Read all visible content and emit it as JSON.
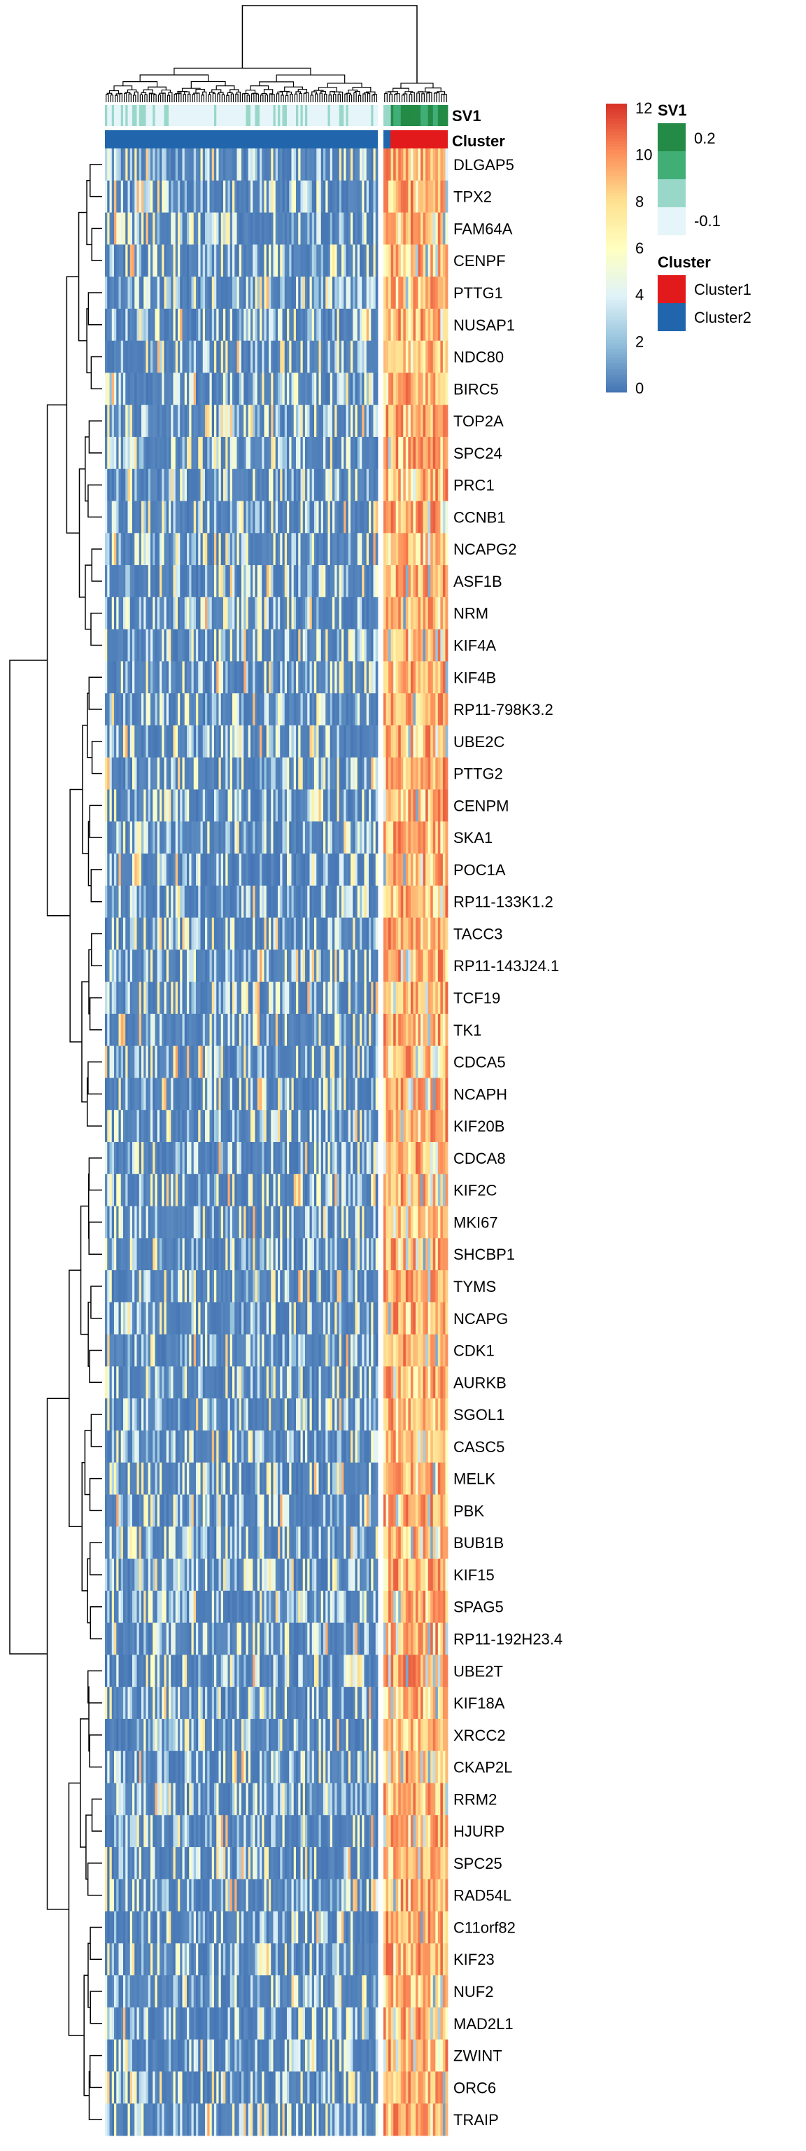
{
  "chart_data": {
    "type": "heatmap",
    "title": "",
    "xlabel": "",
    "ylabel": "",
    "rows": [
      "DLGAP5",
      "TPX2",
      "FAM64A",
      "CENPF",
      "PTTG1",
      "NUSAP1",
      "NDC80",
      "BIRC5",
      "TOP2A",
      "SPC24",
      "PRC1",
      "CCNB1",
      "NCAPG2",
      "ASF1B",
      "NRM",
      "KIF4A",
      "KIF4B",
      "RP11-798K3.2",
      "UBE2C",
      "PTTG2",
      "CENPM",
      "SKA1",
      "POC1A",
      "RP11-133K1.2",
      "TACC3",
      "RP11-143J24.1",
      "TCF19",
      "TK1",
      "CDCA5",
      "NCAPH",
      "KIF20B",
      "CDCA8",
      "KIF2C",
      "MKI67",
      "SHCBP1",
      "TYMS",
      "NCAPG",
      "CDK1",
      "AURKB",
      "SGOL1",
      "CASC5",
      "MELK",
      "PBK",
      "BUB1B",
      "KIF15",
      "SPAG5",
      "RP11-192H23.4",
      "UBE2T",
      "KIF18A",
      "XRCC2",
      "CKAP2L",
      "RRM2",
      "HJURP",
      "SPC25",
      "RAD54L",
      "C11orf82",
      "KIF23",
      "NUF2",
      "MAD2L1",
      "ZWINT",
      "ORC6",
      "TRAIP"
    ],
    "annotation_tracks": [
      "SV1",
      "Cluster"
    ],
    "color_scale": {
      "min": 0,
      "max": 12,
      "ticks": [
        0,
        2,
        4,
        6,
        8,
        10,
        12
      ],
      "colors": [
        "#4575b4",
        "#91bfdb",
        "#e0f3f8",
        "#ffffbf",
        "#fee090",
        "#fc8d59",
        "#d73027"
      ]
    },
    "columns": {
      "cluster2_count": 120,
      "cluster1_count": 26,
      "cluster2_base_value": 0.6,
      "cluster1_base_value": 8.5
    }
  },
  "legend": {
    "sv1": {
      "title": "SV1",
      "labels": [
        "0.2",
        "-0.1"
      ],
      "colors": [
        "#238b45",
        "#41ae76",
        "#99d8c9",
        "#e5f5f9"
      ]
    },
    "cluster": {
      "title": "Cluster",
      "items": [
        {
          "label": "Cluster1",
          "color": "#e31a1c"
        },
        {
          "label": "Cluster2",
          "color": "#2166ac"
        }
      ]
    }
  }
}
